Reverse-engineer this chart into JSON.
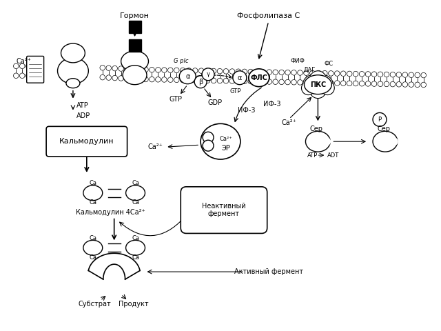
{
  "bg_color": "#ffffff",
  "labels": {
    "gormon": "Гормон",
    "fosfolipaza": "Фосфолипаза С",
    "ca2plus_left": "Ca²⁺",
    "atp": "ATP",
    "adp": "ADP",
    "g_plc": "G plc",
    "gtp1": "GTP",
    "gdp": "GDP",
    "alpha": "α",
    "beta": "β",
    "gamma": "γ",
    "alpha2": "α",
    "fls": "ФЛС",
    "gtp2": "GTP",
    "if3": "ИФ-3",
    "fif": "ФИФ",
    "dag": "ДАГ",
    "fs": "ФС",
    "pks": "ПКС",
    "er": "ЭР",
    "ca2plus_er": "Ca²⁺",
    "ca2plus_pks": "Ca²⁺",
    "kalmodulin_box": "Кальмодулин",
    "ca2plus_calm": "Ca²⁺",
    "ser1": "Сер",
    "atp2": "ATP",
    "adt": "ADT",
    "ser2": "Сер",
    "p_label": "P",
    "kalmodulin_4ca": "Кальмодулин 4Ca²⁺",
    "neaktivny": "Неактивный\nфермент",
    "aktivny": "Активный фермент",
    "substrat": "Субстрат",
    "produkt": "Продукт"
  }
}
